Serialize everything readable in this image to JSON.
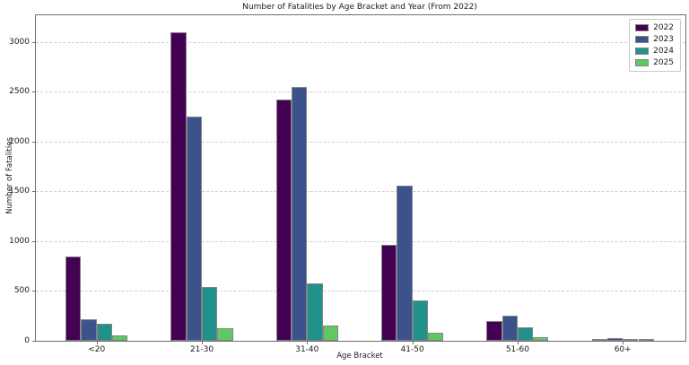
{
  "chart_data": {
    "type": "bar",
    "title": "Number of Fatalities by Age Bracket and Year (From 2022)",
    "xlabel": "Age Bracket",
    "ylabel": "Number of Fatalities",
    "categories": [
      "<20",
      "21-30",
      "31-40",
      "41-50",
      "51-60",
      "60+"
    ],
    "series": [
      {
        "name": "2022",
        "color": "#440154",
        "values": [
          850,
          3100,
          2420,
          960,
          200,
          10
        ]
      },
      {
        "name": "2023",
        "color": "#3b528b",
        "values": [
          220,
          2250,
          2550,
          1560,
          250,
          25
        ]
      },
      {
        "name": "2024",
        "color": "#21918c",
        "values": [
          170,
          540,
          580,
          410,
          135,
          15
        ]
      },
      {
        "name": "2025",
        "color": "#5ec962",
        "values": [
          55,
          130,
          150,
          85,
          35,
          5
        ]
      }
    ],
    "ylim": [
      0,
      3270
    ],
    "yticks": [
      0,
      500,
      1000,
      1500,
      2000,
      2500,
      3000
    ],
    "grid": "on",
    "grid_style": "dashed",
    "grid_color": "#cfcfcf",
    "bar_edge_color": "#848484",
    "legend_position": "upper right",
    "legend_entries": [
      "2022",
      "2023",
      "2024",
      "2025"
    ]
  }
}
